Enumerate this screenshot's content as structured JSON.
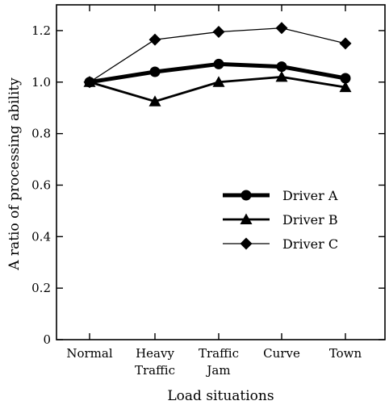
{
  "chart_data": {
    "type": "line",
    "title": "",
    "xlabel": "Load situations",
    "ylabel": "A ratio of processing ability",
    "categories": [
      [
        "Normal"
      ],
      [
        "Heavy",
        "Traffic"
      ],
      [
        "Traffic",
        "Jam"
      ],
      [
        "Curve"
      ],
      [
        "Town"
      ]
    ],
    "ylim": [
      0,
      1.3
    ],
    "yticks": [
      "0",
      "0.2",
      "0.4",
      "0.6",
      "0.8",
      "1.0",
      "1.2"
    ],
    "ytick_values": [
      0,
      0.2,
      0.4,
      0.6,
      0.8,
      1.0,
      1.2
    ],
    "grid": false,
    "legend_position": "center-right",
    "series": [
      {
        "name": "Driver A",
        "marker": "circle",
        "line_weight": "thick",
        "values": [
          1.0,
          1.04,
          1.07,
          1.06,
          1.015
        ]
      },
      {
        "name": "Driver B",
        "marker": "triangle",
        "line_weight": "medium",
        "values": [
          1.0,
          0.925,
          1.0,
          1.02,
          0.98
        ]
      },
      {
        "name": "Driver C",
        "marker": "diamond",
        "line_weight": "thin",
        "values": [
          1.0,
          1.165,
          1.195,
          1.21,
          1.15
        ]
      }
    ],
    "colors": {
      "line": "#000000",
      "background": "#ffffff"
    }
  }
}
